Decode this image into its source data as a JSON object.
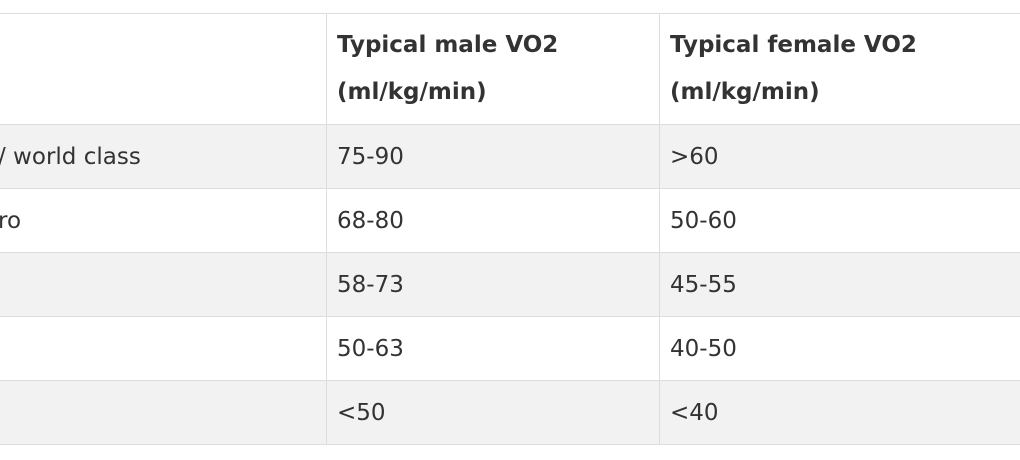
{
  "table": {
    "header": [
      null,
      "Typical male VO2 (ml/kg/min)",
      "Typical female VO2 (ml/kg/min)"
    ],
    "rows": [
      [
        "/ world class",
        "75-90",
        ">60"
      ],
      [
        "ro",
        "68-80",
        "50-60"
      ],
      [
        null,
        "58-73",
        "45-55"
      ],
      [
        null,
        "50-63",
        "40-50"
      ],
      [
        null,
        "<50",
        "<40"
      ]
    ]
  }
}
